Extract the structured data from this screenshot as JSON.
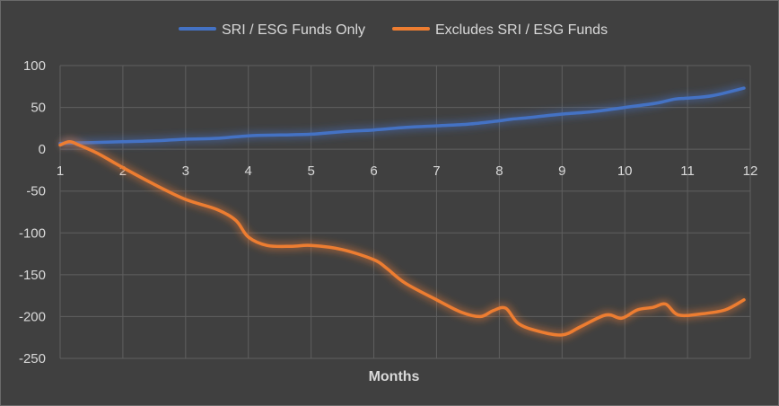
{
  "chart_data": {
    "type": "line",
    "title": "",
    "xlabel": "Months",
    "ylabel": "",
    "xlim": [
      1,
      12
    ],
    "ylim": [
      -250,
      100
    ],
    "xticks": [
      1,
      2,
      3,
      4,
      5,
      6,
      7,
      8,
      9,
      10,
      11,
      12
    ],
    "yticks": [
      100,
      50,
      0,
      -50,
      -100,
      -150,
      -200,
      -250
    ],
    "grid": true,
    "legend_position": "top-center",
    "series": [
      {
        "name": "SRI / ESG Funds Only",
        "color": "#4472c4",
        "x": [
          1,
          1.5,
          2,
          2.5,
          3,
          3.5,
          4,
          4.5,
          5,
          5.5,
          6,
          6.5,
          7,
          7.5,
          8,
          8.2,
          8.5,
          9,
          9.5,
          10,
          10.5,
          10.8,
          11,
          11.4,
          11.9
        ],
        "y": [
          7,
          8,
          9,
          10,
          12,
          13,
          16,
          17,
          18,
          21,
          23,
          26,
          28,
          30,
          34,
          36,
          38,
          42,
          45,
          50,
          55,
          60,
          61,
          64,
          73
        ]
      },
      {
        "name": "Excludes SRI / ESG Funds",
        "color": "#ed7d31",
        "x": [
          1,
          1.15,
          1.3,
          1.6,
          2,
          2.5,
          3,
          3.5,
          3.8,
          4,
          4.3,
          4.7,
          5,
          5.5,
          6,
          6.2,
          6.5,
          7,
          7.4,
          7.7,
          7.9,
          8.1,
          8.3,
          8.6,
          9,
          9.3,
          9.7,
          9.95,
          10.2,
          10.45,
          10.65,
          10.85,
          11.2,
          11.6,
          11.9
        ],
        "y": [
          5,
          9,
          5,
          -5,
          -22,
          -42,
          -60,
          -72,
          -85,
          -105,
          -115,
          -116,
          -115,
          -120,
          -132,
          -142,
          -160,
          -180,
          -195,
          -200,
          -193,
          -190,
          -208,
          -217,
          -222,
          -212,
          -198,
          -202,
          -192,
          -189,
          -185,
          -198,
          -197,
          -192,
          -180
        ]
      }
    ]
  }
}
